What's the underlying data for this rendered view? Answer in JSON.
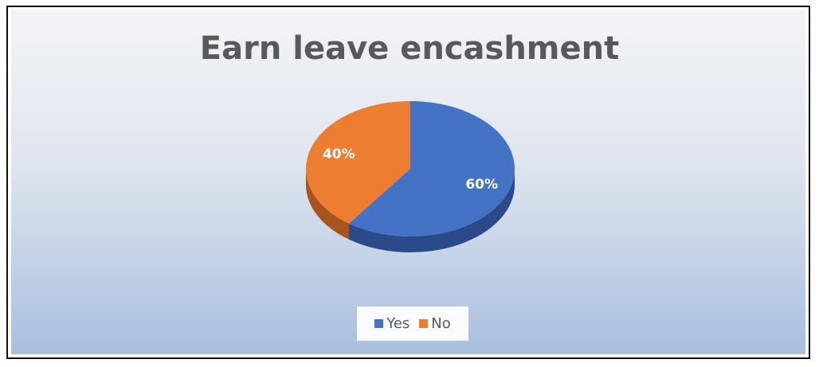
{
  "chart_data": {
    "type": "pie",
    "title": "Earn leave encashment",
    "categories": [
      "Yes",
      "No"
    ],
    "values": [
      60,
      40
    ],
    "labels": [
      "60%",
      "40%"
    ],
    "colors": [
      "#4472c4",
      "#ed7d31"
    ],
    "side_colors": [
      "#2a4a8a",
      "#a9541c"
    ],
    "legend_position": "bottom",
    "style": "3d"
  }
}
